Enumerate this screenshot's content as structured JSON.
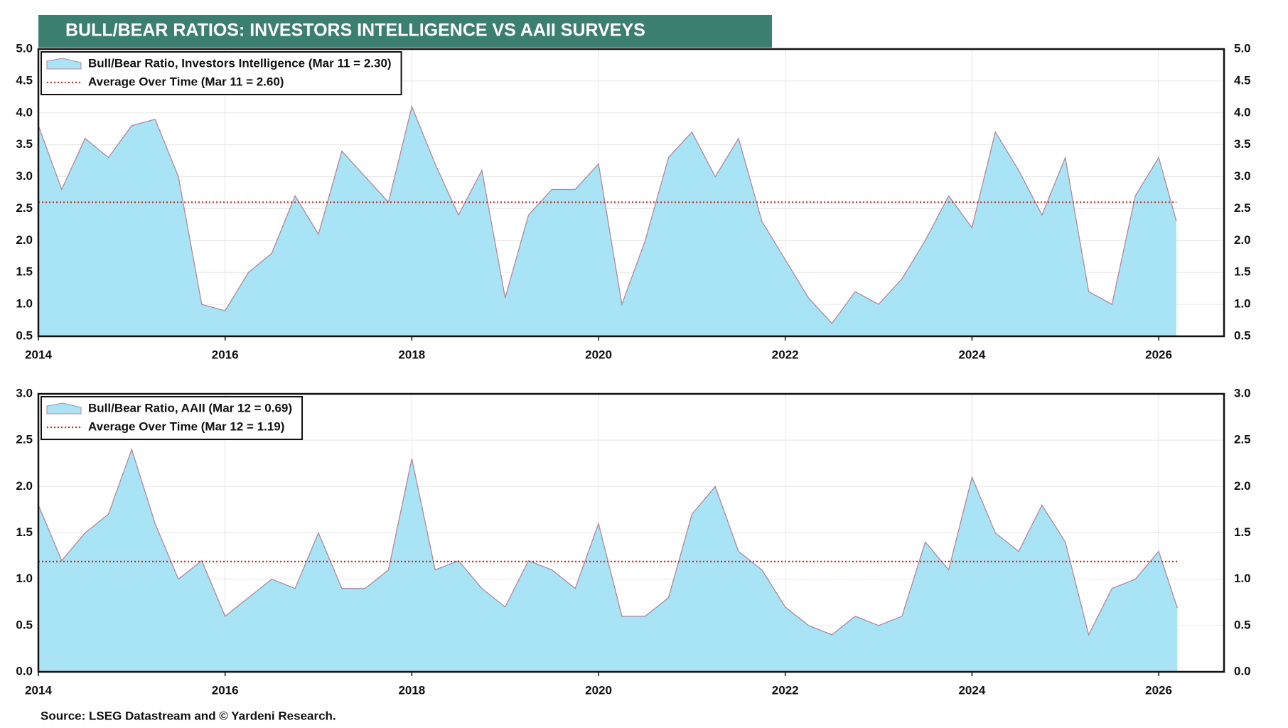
{
  "title": "BULL/BEAR RATIOS: INVESTORS INTELLIGENCE VS AAII SURVEYS",
  "source": "Source: LSEG Datastream and © Yardeni Research.",
  "chart_data": [
    {
      "type": "area",
      "x": [
        2014,
        2014.25,
        2014.5,
        2014.75,
        2015,
        2015.25,
        2015.5,
        2015.75,
        2016,
        2016.25,
        2016.5,
        2016.75,
        2017,
        2017.25,
        2017.5,
        2017.75,
        2018,
        2018.25,
        2018.5,
        2018.75,
        2019,
        2019.25,
        2019.5,
        2019.75,
        2020,
        2020.25,
        2020.5,
        2020.75,
        2021,
        2021.25,
        2021.5,
        2021.75,
        2022,
        2022.25,
        2022.5,
        2022.75,
        2023,
        2023.25,
        2023.5,
        2023.75,
        2024,
        2024.25,
        2024.5,
        2024.75,
        2025,
        2025.25,
        2025.5,
        2025.75,
        2026,
        2026.19
      ],
      "series": [
        {
          "name": "Bull/Bear Ratio, Investors Intelligence (Mar 11 = 2.30)",
          "type": "area",
          "color": "#a8e4f6",
          "values": [
            3.8,
            2.8,
            3.6,
            3.3,
            3.8,
            3.9,
            3.0,
            1.0,
            0.9,
            1.5,
            1.8,
            2.7,
            2.1,
            3.4,
            3.0,
            2.6,
            4.1,
            3.2,
            2.4,
            3.1,
            1.1,
            2.4,
            2.8,
            2.8,
            3.2,
            1.0,
            2.0,
            3.3,
            3.7,
            3.0,
            3.6,
            2.3,
            1.7,
            1.1,
            0.7,
            1.2,
            1.0,
            1.4,
            2.0,
            2.7,
            2.2,
            3.7,
            3.1,
            2.4,
            3.3,
            1.2,
            1.0,
            2.7,
            3.3,
            2.3
          ]
        },
        {
          "name": "Average Over Time (Mar 11 = 2.60)",
          "type": "line",
          "linestyle": "dotted",
          "color": "#d42a2a",
          "x": [
            2014,
            2026.19
          ],
          "values": [
            2.6,
            2.6
          ]
        }
      ],
      "xlim": [
        2014,
        2026.7
      ],
      "xticks": [
        2014,
        2016,
        2018,
        2020,
        2022,
        2024,
        2026
      ],
      "ylim": [
        0.5,
        5
      ],
      "yticks": [
        0.5,
        {
          "value": 1,
          "label": "1.0"
        },
        1.5,
        {
          "value": 2,
          "label": "2.0"
        },
        2.5,
        {
          "value": 3,
          "label": "3.0"
        },
        3.5,
        {
          "value": 4,
          "label": "4.0"
        },
        4.5,
        {
          "value": 5,
          "label": "5.0"
        }
      ],
      "grid": true,
      "legend": "upper left"
    },
    {
      "type": "area",
      "x": [
        2014,
        2014.25,
        2014.5,
        2014.75,
        2015,
        2015.25,
        2015.5,
        2015.75,
        2016,
        2016.25,
        2016.5,
        2016.75,
        2017,
        2017.25,
        2017.5,
        2017.75,
        2018,
        2018.25,
        2018.5,
        2018.75,
        2019,
        2019.25,
        2019.5,
        2019.75,
        2020,
        2020.25,
        2020.5,
        2020.75,
        2021,
        2021.25,
        2021.5,
        2021.75,
        2022,
        2022.25,
        2022.5,
        2022.75,
        2023,
        2023.25,
        2023.5,
        2023.75,
        2024,
        2024.25,
        2024.5,
        2024.75,
        2025,
        2025.25,
        2025.5,
        2025.75,
        2026,
        2026.2
      ],
      "series": [
        {
          "name": "Bull/Bear Ratio, AAII (Mar 12 = 0.69)",
          "type": "area",
          "color": "#a8e4f6",
          "values": [
            1.8,
            1.2,
            1.5,
            1.7,
            2.4,
            1.6,
            1.0,
            1.2,
            0.6,
            0.8,
            1.0,
            0.9,
            1.5,
            0.9,
            0.9,
            1.1,
            2.3,
            1.1,
            1.2,
            0.9,
            0.7,
            1.2,
            1.1,
            0.9,
            1.6,
            0.6,
            0.6,
            0.8,
            1.7,
            2.0,
            1.3,
            1.1,
            0.7,
            0.5,
            0.4,
            0.6,
            0.5,
            0.6,
            1.4,
            1.1,
            2.1,
            1.5,
            1.3,
            1.8,
            1.4,
            0.4,
            0.9,
            1.0,
            1.3,
            0.69
          ]
        },
        {
          "name": "Average Over Time (Mar 12 = 1.19)",
          "type": "line",
          "linestyle": "dotted",
          "color": "#d42a2a",
          "x": [
            2014,
            2026.2
          ],
          "values": [
            1.19,
            1.19
          ]
        }
      ],
      "xlim": [
        2014,
        2026.7
      ],
      "xticks": [
        2014,
        2016,
        2018,
        2020,
        2022,
        2024,
        2026
      ],
      "ylim": [
        0,
        3
      ],
      "yticks": [
        {
          "value": 0,
          "label": "0.0"
        },
        0.5,
        {
          "value": 1,
          "label": "1.0"
        },
        1.5,
        {
          "value": 2,
          "label": "2.0"
        },
        2.5,
        {
          "value": 3,
          "label": "3.0"
        }
      ],
      "grid": true,
      "legend": "upper left"
    }
  ]
}
